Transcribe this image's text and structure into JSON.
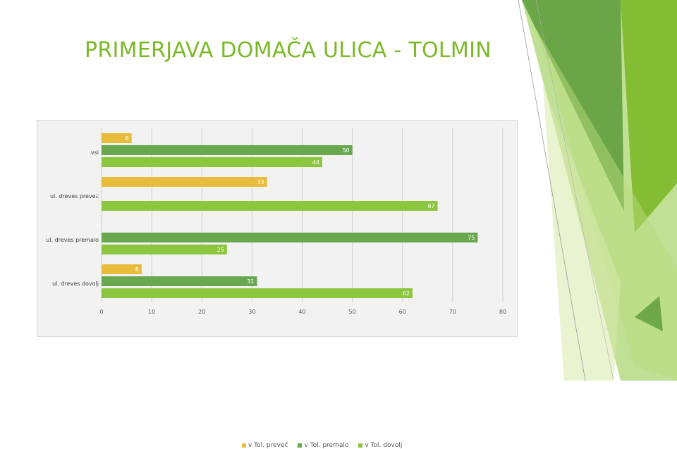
{
  "slide": {
    "title": "PRIMERJAVA DOMAČA ULICA - TOLMIN"
  },
  "colors": {
    "accent": "#7cb928",
    "series1": "#e8bd3c",
    "series2": "#6aa84f",
    "series3": "#8cc63f"
  },
  "chart_data": {
    "type": "bar",
    "orientation": "horizontal",
    "categories": [
      "vsi",
      "ul. dreves preveč",
      "ul. dreves premalo",
      "ul. dreves dovolj"
    ],
    "series": [
      {
        "name": "v Tol. preveč",
        "values": [
          6,
          33,
          0,
          8
        ]
      },
      {
        "name": "v Tol. premalo",
        "values": [
          50,
          0,
          75,
          31
        ]
      },
      {
        "name": "v Tol. dovolj",
        "values": [
          44,
          67,
          25,
          62
        ]
      }
    ],
    "x_ticks": [
      "0",
      "10",
      "20",
      "30",
      "40",
      "50",
      "60",
      "70",
      "80"
    ],
    "xlim": [
      0,
      80
    ],
    "grid": true,
    "legend": "bottom"
  }
}
